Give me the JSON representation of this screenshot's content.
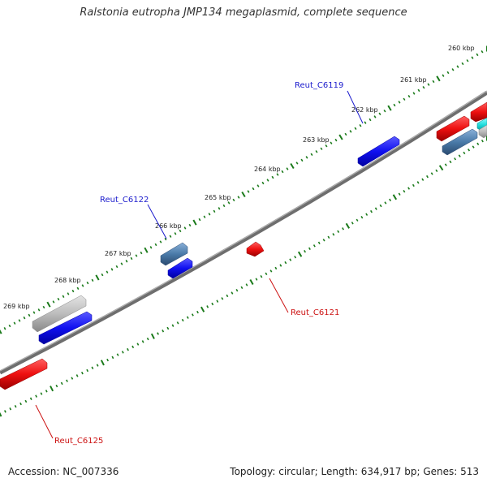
{
  "title": "Ralstonia eutropha JMP134 megaplasmid, complete sequence",
  "footer": {
    "accession": "Accession: NC_007336",
    "summary": "Topology: circular; Length: 634,917 bp; Genes: 513"
  },
  "colors": {
    "backbone": "#777777",
    "ticks": "#1a7a1a",
    "label_blue": "#1a1acc",
    "label_red": "#cc1111",
    "gene_blue": "#0a0aee",
    "gene_red": "#ee1111",
    "gene_steel": "#4a7aa8",
    "gene_gray": "#bbbbbb",
    "gene_cyan": "#22dddd"
  },
  "kbp_ticks": [
    {
      "label": "260 kbp"
    },
    {
      "label": "261 kbp"
    },
    {
      "label": "262 kbp"
    },
    {
      "label": "263 kbp"
    },
    {
      "label": "264 kbp"
    },
    {
      "label": "265 kbp"
    },
    {
      "label": "266 kbp"
    },
    {
      "label": "267 kbp"
    },
    {
      "label": "268 kbp"
    },
    {
      "label": "269 kbp"
    }
  ],
  "gene_labels": [
    {
      "name": "Reut_C6119",
      "color": "blue"
    },
    {
      "name": "Reut_C6122",
      "color": "blue"
    },
    {
      "name": "Reut_C6121",
      "color": "red"
    },
    {
      "name": "Reut_C6125",
      "color": "red"
    }
  ]
}
